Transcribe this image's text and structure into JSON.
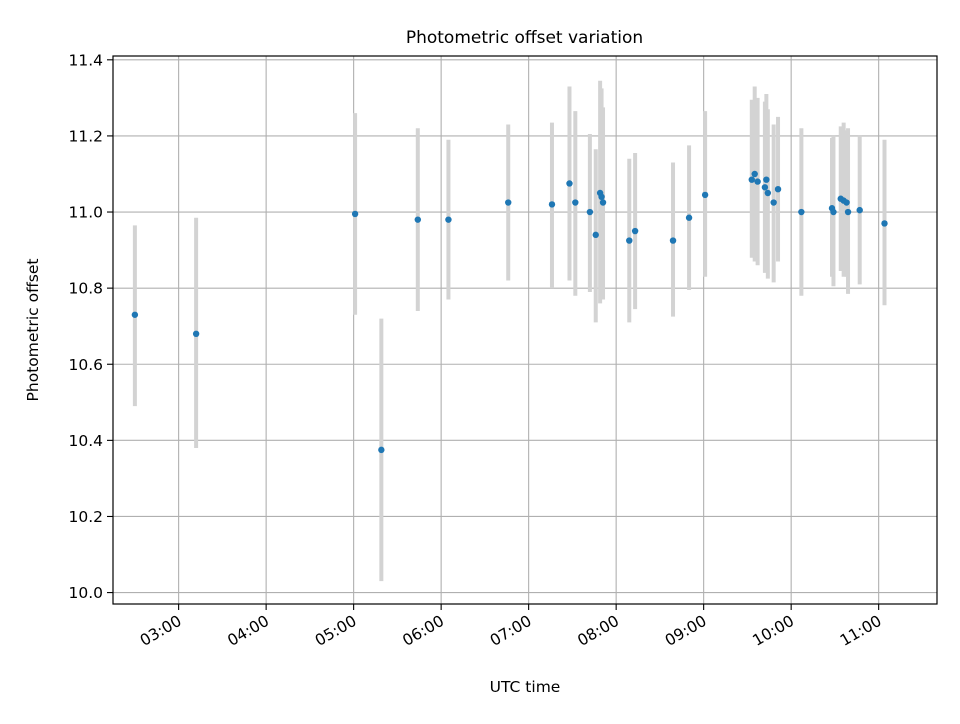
{
  "chart_data": {
    "type": "scatter",
    "title": "Photometric offset variation",
    "xlabel": "UTC time",
    "ylabel": "Photometric offset",
    "grid": true,
    "xlim": [
      "02:15",
      "11:40"
    ],
    "ylim": [
      9.97,
      11.41
    ],
    "x_ticks": [
      "03:00",
      "04:00",
      "05:00",
      "06:00",
      "07:00",
      "08:00",
      "09:00",
      "10:00",
      "11:00"
    ],
    "y_ticks": [
      10.0,
      10.2,
      10.4,
      10.6,
      10.8,
      11.0,
      11.2,
      11.4
    ],
    "y_tick_labels": [
      "10.0",
      "10.2",
      "10.4",
      "10.6",
      "10.8",
      "11.0",
      "11.2",
      "11.4"
    ],
    "colors": {
      "point": "#1f77b4",
      "errorbar": "#d3d3d3",
      "grid": "#b0b0b0"
    },
    "points": [
      {
        "x": "02:30",
        "y": 10.73,
        "ylow": 10.49,
        "yhigh": 10.965
      },
      {
        "x": "03:12",
        "y": 10.68,
        "ylow": 10.38,
        "yhigh": 10.985
      },
      {
        "x": "05:01",
        "y": 10.995,
        "ylow": 10.73,
        "yhigh": 11.26
      },
      {
        "x": "05:19",
        "y": 10.375,
        "ylow": 10.03,
        "yhigh": 10.72
      },
      {
        "x": "05:44",
        "y": 10.98,
        "ylow": 10.74,
        "yhigh": 11.22
      },
      {
        "x": "06:05",
        "y": 10.98,
        "ylow": 10.77,
        "yhigh": 11.19
      },
      {
        "x": "06:46",
        "y": 11.025,
        "ylow": 10.82,
        "yhigh": 11.23
      },
      {
        "x": "07:16",
        "y": 11.02,
        "ylow": 10.8,
        "yhigh": 11.235
      },
      {
        "x": "07:28",
        "y": 11.075,
        "ylow": 10.82,
        "yhigh": 11.33
      },
      {
        "x": "07:32",
        "y": 11.025,
        "ylow": 10.78,
        "yhigh": 11.265
      },
      {
        "x": "07:42",
        "y": 11.0,
        "ylow": 10.79,
        "yhigh": 11.205
      },
      {
        "x": "07:46",
        "y": 10.94,
        "ylow": 10.71,
        "yhigh": 11.165
      },
      {
        "x": "07:49",
        "y": 11.05,
        "ylow": 10.76,
        "yhigh": 11.345
      },
      {
        "x": "07:50",
        "y": 11.04,
        "ylow": 10.77,
        "yhigh": 11.325
      },
      {
        "x": "07:51",
        "y": 11.025,
        "ylow": 10.77,
        "yhigh": 11.275
      },
      {
        "x": "08:09",
        "y": 10.925,
        "ylow": 10.71,
        "yhigh": 11.14
      },
      {
        "x": "08:13",
        "y": 10.95,
        "ylow": 10.745,
        "yhigh": 11.155
      },
      {
        "x": "08:39",
        "y": 10.925,
        "ylow": 10.725,
        "yhigh": 11.13
      },
      {
        "x": "08:50",
        "y": 10.985,
        "ylow": 10.795,
        "yhigh": 11.175
      },
      {
        "x": "09:01",
        "y": 11.045,
        "ylow": 10.83,
        "yhigh": 11.265
      },
      {
        "x": "09:33",
        "y": 11.085,
        "ylow": 10.88,
        "yhigh": 11.295
      },
      {
        "x": "09:35",
        "y": 11.1,
        "ylow": 10.87,
        "yhigh": 11.33
      },
      {
        "x": "09:37",
        "y": 11.08,
        "ylow": 10.86,
        "yhigh": 11.3
      },
      {
        "x": "09:42",
        "y": 11.065,
        "ylow": 10.84,
        "yhigh": 11.29
      },
      {
        "x": "09:43",
        "y": 11.085,
        "ylow": 10.86,
        "yhigh": 11.31
      },
      {
        "x": "09:44",
        "y": 11.05,
        "ylow": 10.825,
        "yhigh": 11.27
      },
      {
        "x": "09:48",
        "y": 11.025,
        "ylow": 10.815,
        "yhigh": 11.23
      },
      {
        "x": "09:51",
        "y": 11.06,
        "ylow": 10.87,
        "yhigh": 11.25
      },
      {
        "x": "10:07",
        "y": 11.0,
        "ylow": 10.78,
        "yhigh": 11.22
      },
      {
        "x": "10:28",
        "y": 11.01,
        "ylow": 10.83,
        "yhigh": 11.195
      },
      {
        "x": "10:29",
        "y": 11.0,
        "ylow": 10.805,
        "yhigh": 11.2
      },
      {
        "x": "10:34",
        "y": 11.035,
        "ylow": 10.845,
        "yhigh": 11.225
      },
      {
        "x": "10:36",
        "y": 11.03,
        "ylow": 10.83,
        "yhigh": 11.235
      },
      {
        "x": "10:38",
        "y": 11.025,
        "ylow": 10.83,
        "yhigh": 11.215
      },
      {
        "x": "10:39",
        "y": 11.0,
        "ylow": 10.785,
        "yhigh": 11.22
      },
      {
        "x": "10:47",
        "y": 11.005,
        "ylow": 10.81,
        "yhigh": 11.2
      },
      {
        "x": "11:04",
        "y": 10.97,
        "ylow": 10.755,
        "yhigh": 11.19
      }
    ]
  }
}
